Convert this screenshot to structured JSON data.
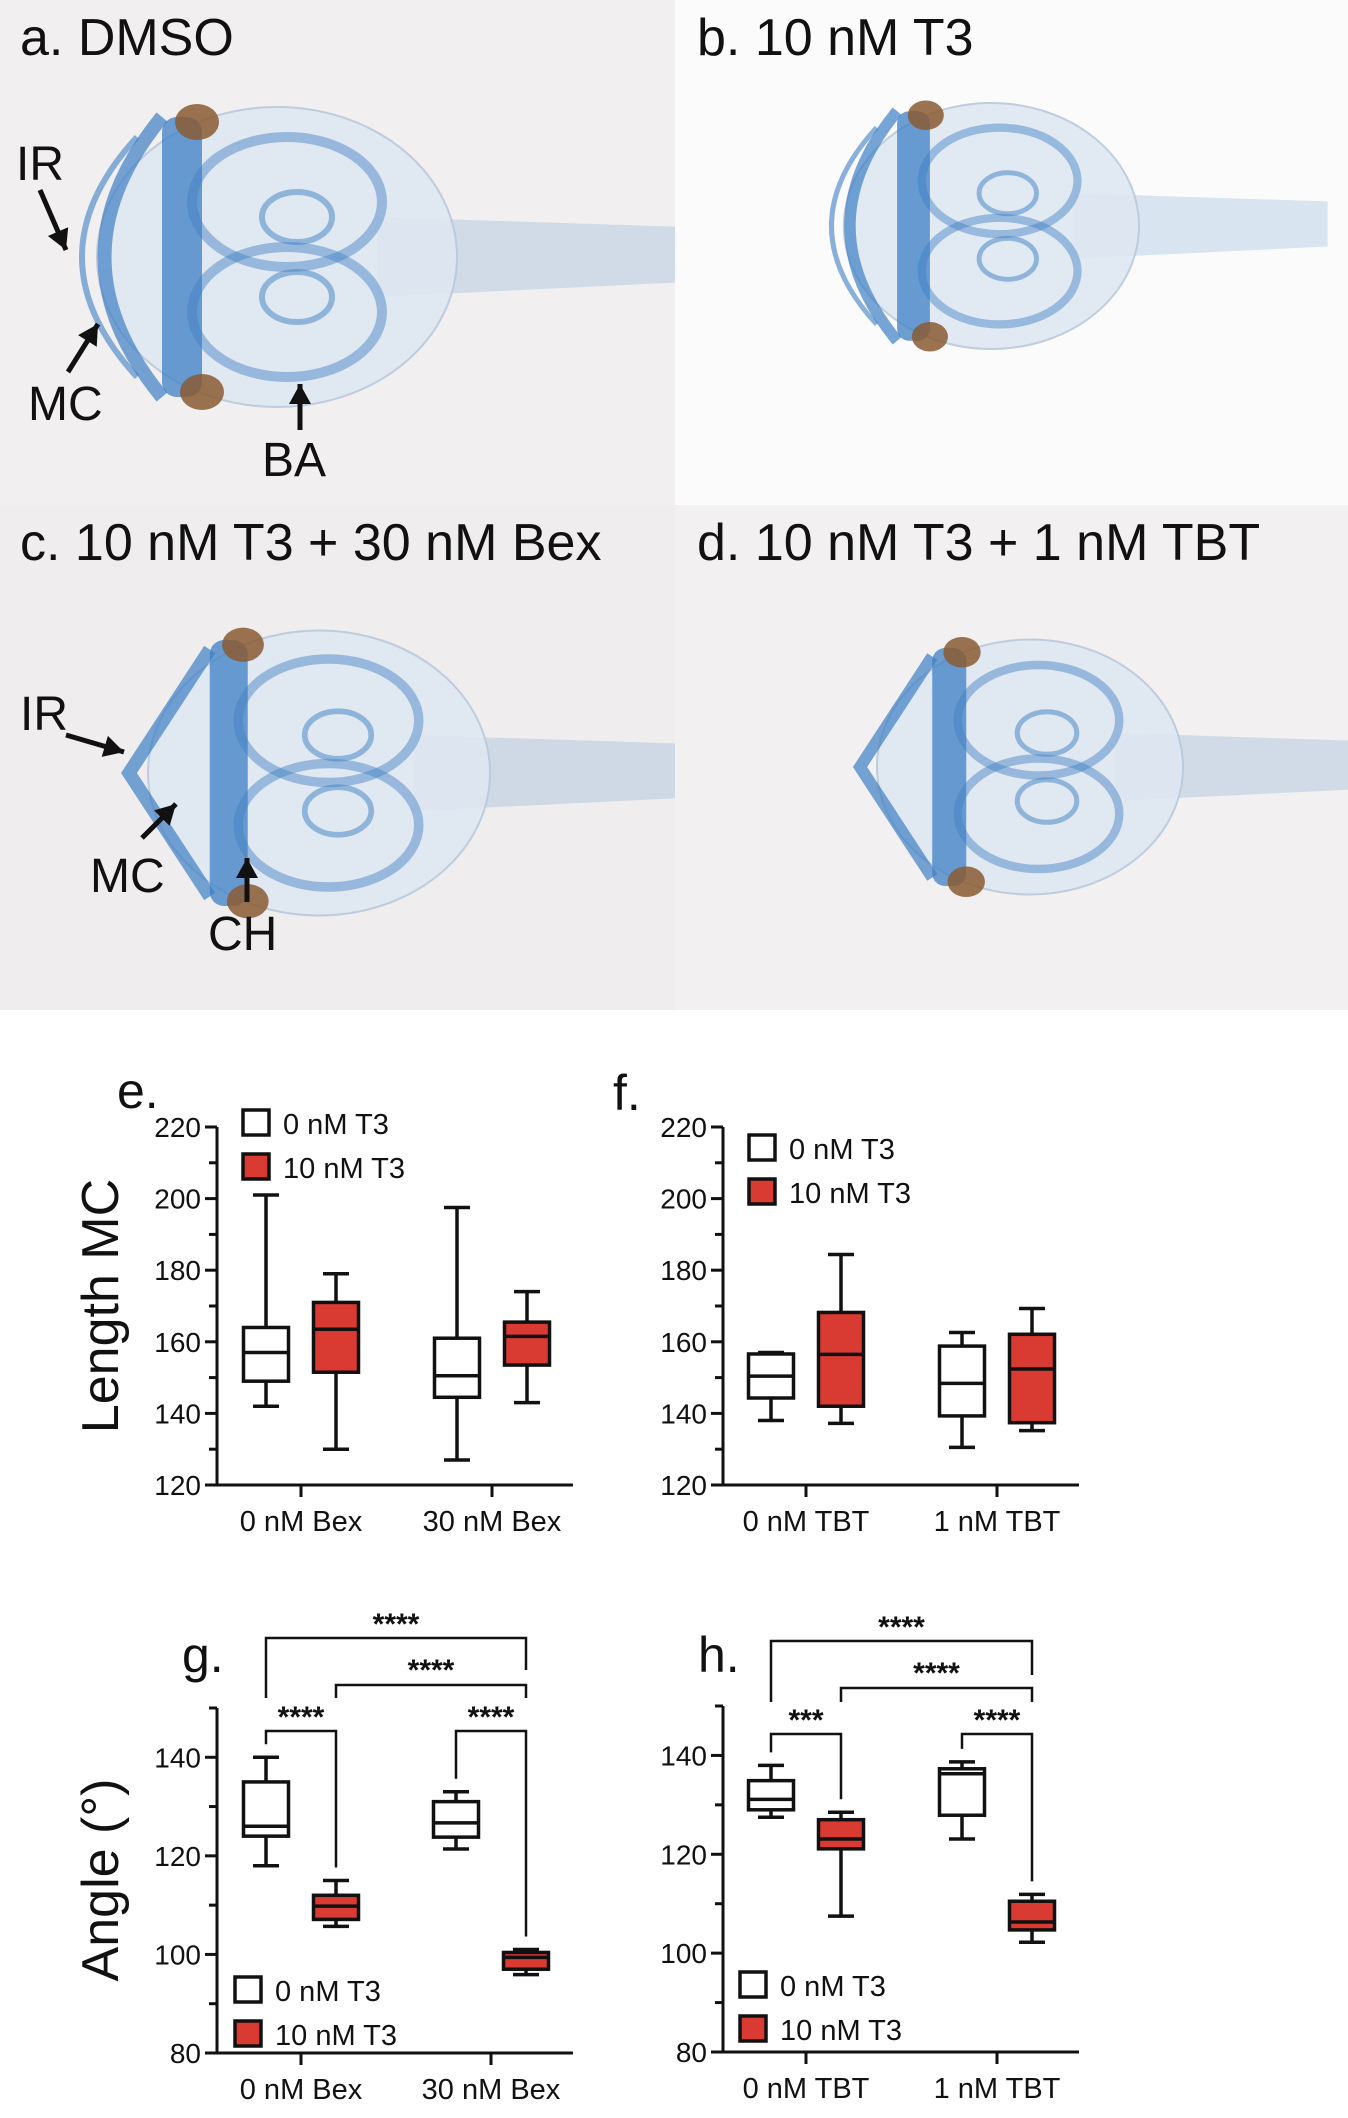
{
  "photo_panels": [
    {
      "label": "a. DMSO",
      "annotations": [
        "IR",
        "MC",
        "BA"
      ]
    },
    {
      "label": "b. 10 nM T3",
      "annotations": []
    },
    {
      "label": "c. 10 nM T3 + 30 nM Bex",
      "annotations": [
        "IR",
        "MC",
        "CH"
      ]
    },
    {
      "label": "d. 10 nM T3 + 1 nM TBT",
      "annotations": []
    }
  ],
  "colors": {
    "control": "#ffffff",
    "treated": "#d93a32",
    "stain": "#3d7fc4",
    "eye": "#8a5a32"
  },
  "chart_data": [
    {
      "panel": "e.",
      "type": "box",
      "ylabel": "Length MC",
      "ylim": [
        120,
        220
      ],
      "yticks": [
        "120",
        "140",
        "160",
        "180",
        "200",
        "220"
      ],
      "categories": [
        "0 nM Bex",
        "30 nM Bex"
      ],
      "legend": [
        "0 nM T3",
        "10 nM T3"
      ],
      "legend_placement": "top-left",
      "boxes": [
        {
          "category": "0 nM Bex",
          "series": "0 nM T3",
          "min": 142,
          "q1": 149,
          "median": 157,
          "q3": 164,
          "max": 201
        },
        {
          "category": "0 nM Bex",
          "series": "10 nM T3",
          "min": 130,
          "q1": 151.5,
          "median": 163.5,
          "q3": 171,
          "max": 179
        },
        {
          "category": "30 nM Bex",
          "series": "0 nM T3",
          "min": 127,
          "q1": 144.5,
          "median": 150.5,
          "q3": 161,
          "max": 197.5
        },
        {
          "category": "30 nM Bex",
          "series": "10 nM T3",
          "min": 143,
          "q1": 153.5,
          "median": 161.5,
          "q3": 165.5,
          "max": 174
        }
      ],
      "significance": []
    },
    {
      "panel": "f.",
      "type": "box",
      "ylabel": "",
      "ylim": [
        120,
        220
      ],
      "yticks": [
        "120",
        "140",
        "160",
        "180",
        "200",
        "220"
      ],
      "categories": [
        "0 nM TBT",
        "1 nM TBT"
      ],
      "legend": [
        "0 nM T3",
        "10 nM T3"
      ],
      "legend_placement": "top-left",
      "boxes": [
        {
          "category": "0 nM TBT",
          "series": "0 nM T3",
          "min": 138,
          "q1": 144.3,
          "median": 150.4,
          "q3": 156.6,
          "max": 157
        },
        {
          "category": "0 nM TBT",
          "series": "10 nM T3",
          "min": 137.2,
          "q1": 142,
          "median": 156.5,
          "q3": 168.2,
          "max": 184.4
        },
        {
          "category": "1 nM TBT",
          "series": "0 nM T3",
          "min": 130.5,
          "q1": 139.3,
          "median": 148.4,
          "q3": 158.8,
          "max": 162.6
        },
        {
          "category": "1 nM TBT",
          "series": "10 nM T3",
          "min": 135.2,
          "q1": 137.4,
          "median": 152.4,
          "q3": 162.1,
          "max": 169.3
        }
      ],
      "significance": []
    },
    {
      "panel": "g.",
      "type": "box",
      "ylabel": "Angle (°)",
      "ylim": [
        80,
        150
      ],
      "yticks": [
        "80",
        "100",
        "120",
        "140"
      ],
      "categories": [
        "0 nM Bex",
        "30 nM Bex"
      ],
      "legend": [
        "0 nM T3",
        "10 nM T3"
      ],
      "legend_placement": "bottom-left",
      "boxes": [
        {
          "category": "0 nM Bex",
          "series": "0 nM T3",
          "min": 118,
          "q1": 124,
          "median": 126,
          "q3": 135,
          "max": 140
        },
        {
          "category": "0 nM Bex",
          "series": "10 nM T3",
          "min": 105.7,
          "q1": 107.1,
          "median": 109.8,
          "q3": 112,
          "max": 115
        },
        {
          "category": "30 nM Bex",
          "series": "0 nM T3",
          "min": 121.4,
          "q1": 123.8,
          "median": 126.7,
          "q3": 131,
          "max": 133
        },
        {
          "category": "30 nM Bex",
          "series": "10 nM T3",
          "min": 95.9,
          "q1": 97,
          "median": 99.4,
          "q3": 100.4,
          "max": 101
        }
      ],
      "significance": [
        {
          "from": 0,
          "to": 3,
          "label": "****"
        },
        {
          "from": 1,
          "to": 3,
          "label": "****"
        },
        {
          "from": 0,
          "to": 1,
          "label": "****"
        },
        {
          "from": 2,
          "to": 3,
          "label": "****"
        }
      ]
    },
    {
      "panel": "h.",
      "type": "box",
      "ylabel": "",
      "ylim": [
        80,
        150
      ],
      "yticks": [
        "80",
        "100",
        "120",
        "140"
      ],
      "categories": [
        "0 nM TBT",
        "1 nM TBT"
      ],
      "legend": [
        "0 nM T3",
        "10 nM T3"
      ],
      "legend_placement": "bottom-left",
      "boxes": [
        {
          "category": "0 nM TBT",
          "series": "0 nM T3",
          "min": 127.5,
          "q1": 129,
          "median": 131.1,
          "q3": 134.9,
          "max": 138
        },
        {
          "category": "0 nM TBT",
          "series": "10 nM T3",
          "min": 107.5,
          "q1": 121.1,
          "median": 123.1,
          "q3": 127,
          "max": 128.5
        },
        {
          "category": "1 nM TBT",
          "series": "0 nM T3",
          "min": 123.1,
          "q1": 127.9,
          "median": 136.3,
          "q3": 137.3,
          "max": 138.7
        },
        {
          "category": "1 nM TBT",
          "series": "10 nM T3",
          "min": 102.2,
          "q1": 104.7,
          "median": 106.3,
          "q3": 110.5,
          "max": 111.9
        }
      ],
      "significance": [
        {
          "from": 0,
          "to": 3,
          "label": "****"
        },
        {
          "from": 1,
          "to": 3,
          "label": "****"
        },
        {
          "from": 0,
          "to": 1,
          "label": "***"
        },
        {
          "from": 2,
          "to": 3,
          "label": "****"
        }
      ]
    }
  ]
}
